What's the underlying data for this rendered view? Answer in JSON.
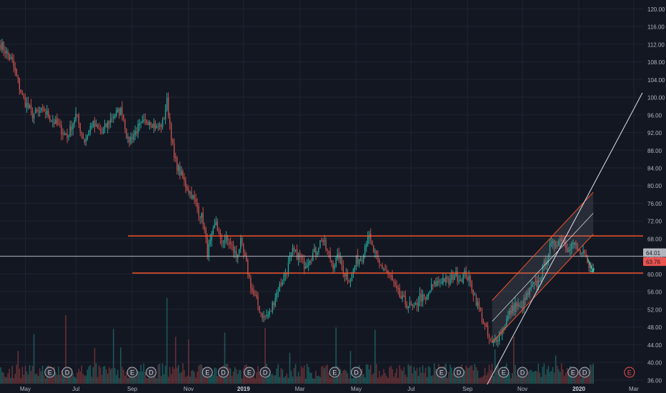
{
  "chart_data": {
    "type": "candlestick",
    "x_axis": {
      "tick_labels": [
        "May",
        "Jul",
        "Sep",
        "Nov",
        "2019",
        "Mar",
        "May",
        "Jul",
        "Sep",
        "Nov",
        "2020",
        "Mar"
      ],
      "bold_labels": [
        "2019",
        "2020"
      ]
    },
    "y_axis": {
      "ylim": [
        35,
        122
      ],
      "ticks": [
        36,
        40,
        44,
        48,
        52,
        56,
        60,
        64,
        68,
        72,
        76,
        80,
        84,
        88,
        92,
        96,
        100,
        104,
        108,
        112,
        116,
        120
      ],
      "tick_labels": [
        "36.00",
        "40.00",
        "44.00",
        "48.00",
        "52.00",
        "56.00",
        "60.00",
        "64.00",
        "68.00",
        "72.00",
        "76.00",
        "80.00",
        "84.00",
        "88.00",
        "92.00",
        "96.00",
        "100.00",
        "104.00",
        "108.00",
        "112.00",
        "116.00",
        "120.00"
      ]
    },
    "price_series_waypoints": [
      [
        0,
        112
      ],
      [
        8,
        108
      ],
      [
        15,
        100
      ],
      [
        22,
        96
      ],
      [
        30,
        97
      ],
      [
        38,
        94
      ],
      [
        46,
        91
      ],
      [
        52,
        96
      ],
      [
        58,
        90
      ],
      [
        63,
        94
      ],
      [
        70,
        92
      ],
      [
        78,
        96
      ],
      [
        84,
        97
      ],
      [
        88,
        90
      ],
      [
        95,
        93
      ],
      [
        103,
        95
      ],
      [
        108,
        93
      ],
      [
        112,
        94
      ],
      [
        115,
        99
      ],
      [
        117,
        94
      ],
      [
        120,
        86
      ],
      [
        124,
        83
      ],
      [
        128,
        80
      ],
      [
        132,
        78
      ],
      [
        136,
        75
      ],
      [
        140,
        72
      ],
      [
        143,
        65
      ],
      [
        146,
        68
      ],
      [
        149,
        72
      ],
      [
        152,
        67
      ],
      [
        156,
        68
      ],
      [
        160,
        66
      ],
      [
        163,
        64
      ],
      [
        166,
        67
      ],
      [
        170,
        62
      ],
      [
        174,
        56
      ],
      [
        178,
        53
      ],
      [
        182,
        50
      ],
      [
        186,
        51
      ],
      [
        190,
        55
      ],
      [
        194,
        58
      ],
      [
        198,
        61
      ],
      [
        202,
        65
      ],
      [
        206,
        64
      ],
      [
        210,
        62
      ],
      [
        214,
        64
      ],
      [
        218,
        65
      ],
      [
        222,
        68
      ],
      [
        226,
        65
      ],
      [
        230,
        62
      ],
      [
        234,
        64
      ],
      [
        238,
        60
      ],
      [
        242,
        59
      ],
      [
        246,
        63
      ],
      [
        250,
        64
      ],
      [
        254,
        69
      ],
      [
        258,
        65
      ],
      [
        262,
        62
      ],
      [
        266,
        61
      ],
      [
        270,
        59
      ],
      [
        274,
        56
      ],
      [
        278,
        54
      ],
      [
        282,
        53
      ],
      [
        286,
        52
      ],
      [
        290,
        55
      ],
      [
        294,
        54
      ],
      [
        298,
        57
      ],
      [
        302,
        58
      ],
      [
        306,
        59
      ],
      [
        310,
        58
      ],
      [
        314,
        60
      ],
      [
        318,
        59
      ],
      [
        322,
        60
      ],
      [
        326,
        57
      ],
      [
        330,
        53
      ],
      [
        334,
        49
      ],
      [
        337,
        46
      ],
      [
        340,
        44
      ],
      [
        344,
        46
      ],
      [
        348,
        48
      ],
      [
        352,
        51
      ],
      [
        356,
        53
      ],
      [
        360,
        52
      ],
      [
        364,
        55
      ],
      [
        368,
        57
      ],
      [
        372,
        58
      ],
      [
        376,
        62
      ],
      [
        380,
        66
      ],
      [
        384,
        67
      ],
      [
        388,
        68
      ],
      [
        392,
        66
      ],
      [
        396,
        67
      ],
      [
        400,
        65
      ],
      [
        404,
        64
      ],
      [
        407,
        61
      ],
      [
        410,
        62
      ]
    ],
    "volume_bars": "heights normalized 0..1 (mostly 0.1-0.3 with spikes)",
    "horizontal_levels": [
      {
        "price": 68.6,
        "label": "",
        "color": "#f0522a"
      },
      {
        "price": 60.2,
        "label": "",
        "color": "#f0522a"
      },
      {
        "price": 64.01,
        "label": "64.01",
        "color": "#b2b5be"
      }
    ],
    "price_badges": [
      {
        "price": 64.01,
        "text": "64.01",
        "color": "#b2b5be"
      },
      {
        "price": 63.76,
        "text": "63.76",
        "color": "#ef5350"
      }
    ],
    "channel": {
      "start_date_index": 340,
      "end_date_index": 410,
      "lower_start": 44.5,
      "lower_end": 69,
      "upper_start": 54,
      "upper_end": 78.5
    },
    "trendline": {
      "from": [
        335,
        34
      ],
      "to": [
        444,
        101
      ]
    },
    "arrow": {
      "from": [
        406,
        63.5
      ],
      "to": [
        410,
        60.5
      ]
    },
    "event_markers": [
      {
        "label": "E",
        "type": "earnings"
      },
      {
        "label": "D",
        "type": "dividend"
      },
      {
        "label": "E",
        "type": "earnings"
      },
      {
        "label": "D",
        "type": "dividend"
      },
      {
        "label": "E",
        "type": "earnings"
      },
      {
        "label": "D",
        "type": "dividend"
      },
      {
        "label": "E",
        "type": "earnings"
      },
      {
        "label": "D",
        "type": "dividend"
      },
      {
        "label": "E",
        "type": "earnings"
      },
      {
        "label": "D",
        "type": "dividend"
      },
      {
        "label": "E",
        "type": "earnings"
      },
      {
        "label": "D",
        "type": "dividend"
      },
      {
        "label": "E",
        "type": "earnings"
      },
      {
        "label": "D",
        "type": "dividend"
      },
      {
        "label": "E",
        "type": "earnings"
      },
      {
        "label": "D",
        "type": "dividend"
      },
      {
        "label": "E",
        "type": "upcoming-earnings"
      }
    ],
    "colors": {
      "background": "#131722",
      "grid": "#1f2433",
      "candle_up": "#c0504d",
      "candle_down": "#26a69a",
      "axis_text": "#b2b5be",
      "level": "#f0522a"
    }
  }
}
